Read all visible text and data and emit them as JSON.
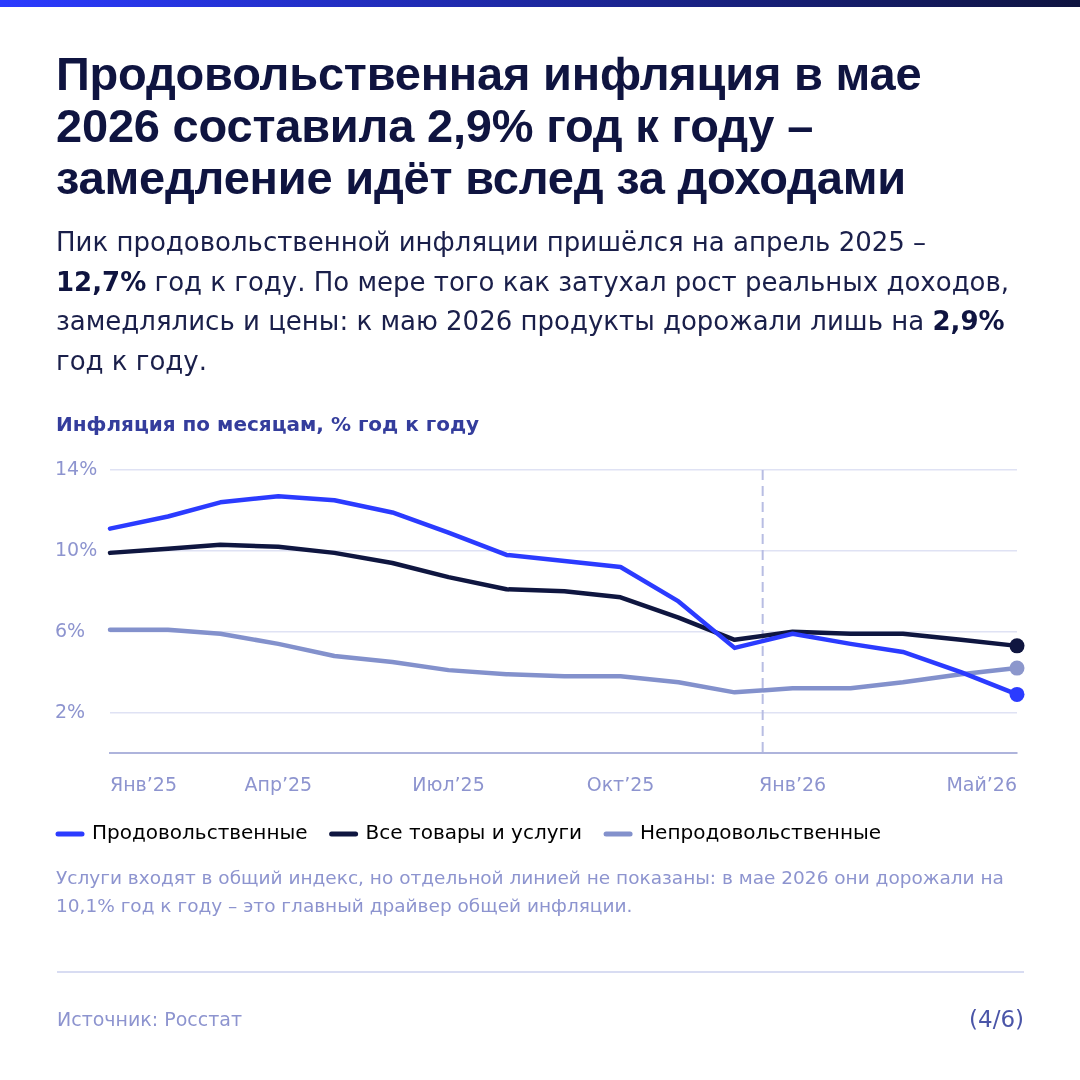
{
  "chart_data": {
    "type": "line",
    "title": "Продовольственная инфляция в мае 2026 составила 2,9% год к году – замедление идёт вслед за доходами",
    "subtitle": "Пик продовольственной инфляции пришёлся на апрель 2025 – 12,7% год к году. По мере того как затухал рост реальных доходов, замедлялись и цены: к маю 2026 продукты дорожали лишь на 2,9% год к году.",
    "ylabel": "Инфляция по месяцам, % год к году",
    "x": [
      "2025-01",
      "2025-02",
      "2025-03",
      "2025-04",
      "2025-05",
      "2025-06",
      "2025-07",
      "2025-08",
      "2025-09",
      "2025-10",
      "2025-11",
      "2025-12",
      "2026-01",
      "2026-02",
      "2026-03",
      "2026-04",
      "2026-05"
    ],
    "series": [
      {
        "name": "Продовольственные",
        "color": "#2b3bff",
        "values": [
          11.1,
          11.7,
          12.4,
          12.7,
          12.5,
          11.9,
          10.9,
          9.8,
          9.5,
          9.2,
          7.5,
          5.2,
          5.9,
          5.4,
          5.0,
          4.0,
          2.9
        ]
      },
      {
        "name": "Все товары и услуги",
        "color": "#0f1640",
        "values": [
          9.9,
          10.1,
          10.3,
          10.2,
          9.9,
          9.4,
          8.7,
          8.1,
          8.0,
          7.7,
          6.7,
          5.6,
          6.0,
          5.9,
          5.9,
          5.6,
          5.3
        ]
      },
      {
        "name": "Непродовольственные",
        "color": "#8391cc",
        "values": [
          6.1,
          6.1,
          5.9,
          5.4,
          4.8,
          4.5,
          4.1,
          3.9,
          3.8,
          3.8,
          3.5,
          3.0,
          3.2,
          3.2,
          3.5,
          3.9,
          4.2
        ]
      },
      {
        "type": "scatter",
        "marker": "circle",
        "color": "#2b3bff",
        "x": [
          "2026-05"
        ],
        "values": [
          2.9
        ]
      },
      {
        "type": "scatter",
        "marker": "circle",
        "color": "#0f1640",
        "x": [
          "2026-05"
        ],
        "values": [
          5.3
        ]
      },
      {
        "type": "scatter",
        "marker": "circle",
        "color": "#8c97cc",
        "x": [
          "2026-05"
        ],
        "values": [
          4.2
        ]
      }
    ],
    "xlim": [
      "2025-01",
      "2026-05"
    ],
    "xticks": [
      {
        "value": "2025-01",
        "label": "Янв’25"
      },
      {
        "value": "2025-04",
        "label": "Апр’25"
      },
      {
        "value": "2025-07",
        "label": "Июл’25"
      },
      {
        "value": "2025-10",
        "label": "Окт’25"
      },
      {
        "value": "2026-01",
        "label": "Янв’26"
      },
      {
        "value": "2026-05",
        "label": "Май’26"
      }
    ],
    "ylim": [
      0,
      14
    ],
    "yticks": [
      {
        "value": 2,
        "label": "2%"
      },
      {
        "value": 6,
        "label": "6%"
      },
      {
        "value": 10,
        "label": "10%"
      },
      {
        "value": 14,
        "label": "14%"
      }
    ],
    "grid": "y",
    "legend": "bottom left",
    "ref_lines": [
      {
        "axis": "x",
        "value": "2025-12-16",
        "color": "#b8bde3",
        "line_style": "dashed"
      }
    ],
    "annotations": [
      "Услуги входят в общий индекс, но отдельной линией не показаны: в мае 2026 они дорожали на 10,1% год к году – это главный драйвер общей инфляции.",
      "Источник: Росстат",
      "(4/6)"
    ]
  }
}
